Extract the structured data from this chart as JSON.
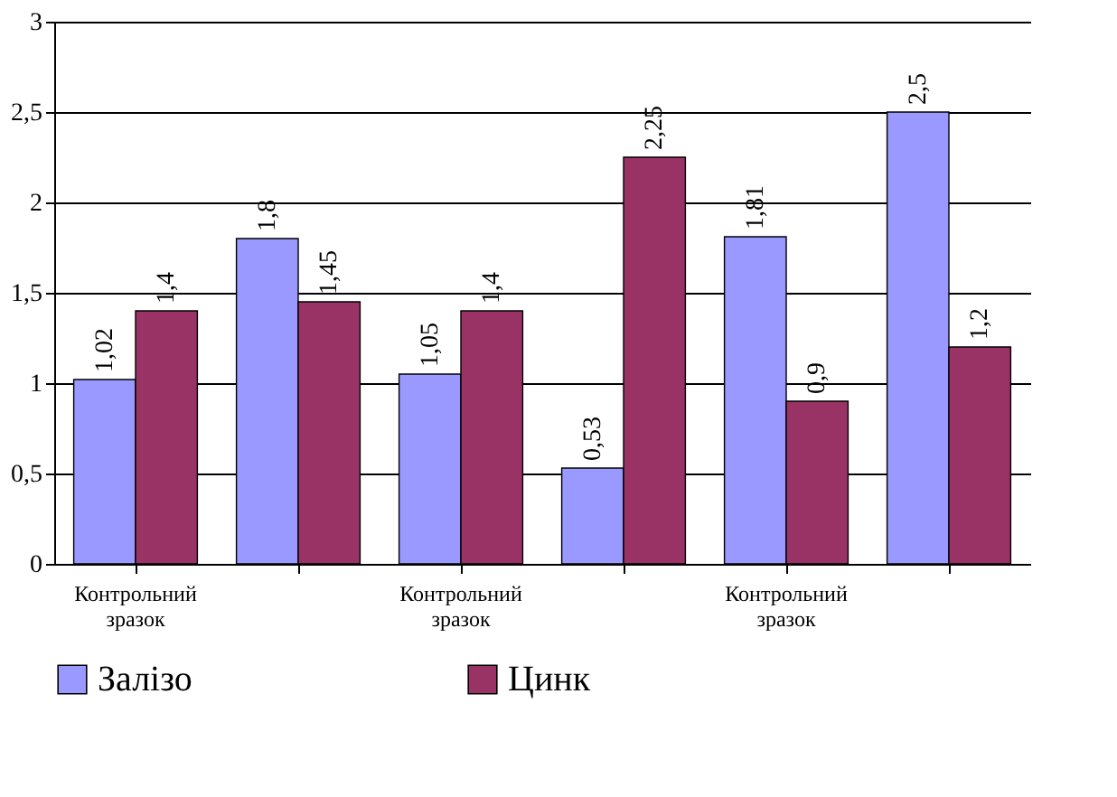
{
  "chart_data": {
    "type": "bar",
    "categories": [
      "Контрольний зразок",
      null,
      "Контрольний зразок",
      null,
      "Контрольний зразок",
      null
    ],
    "series": [
      {
        "name": "Залізо",
        "color": "#9999ff",
        "values": [
          1.02,
          1.8,
          1.05,
          0.53,
          1.81,
          2.5
        ],
        "value_labels": [
          "1,02",
          "1,8",
          "1,05",
          "0,53",
          "1,81",
          "2,5"
        ]
      },
      {
        "name": "Цинк",
        "color": "#993366",
        "values": [
          1.4,
          1.45,
          1.4,
          2.25,
          0.9,
          1.2
        ],
        "value_labels": [
          "1,4",
          "1,45",
          "1,4",
          "2,25",
          "0,9",
          "1,2"
        ]
      }
    ],
    "ylim": [
      0,
      3
    ],
    "yticks": [
      0,
      {
        "value": 0.5,
        "label": "0,5"
      },
      1,
      {
        "value": 1.5,
        "label": "1,5"
      },
      2,
      {
        "value": 2.5,
        "label": "2,5"
      },
      3
    ],
    "grid": "y",
    "legend": "bottom"
  }
}
